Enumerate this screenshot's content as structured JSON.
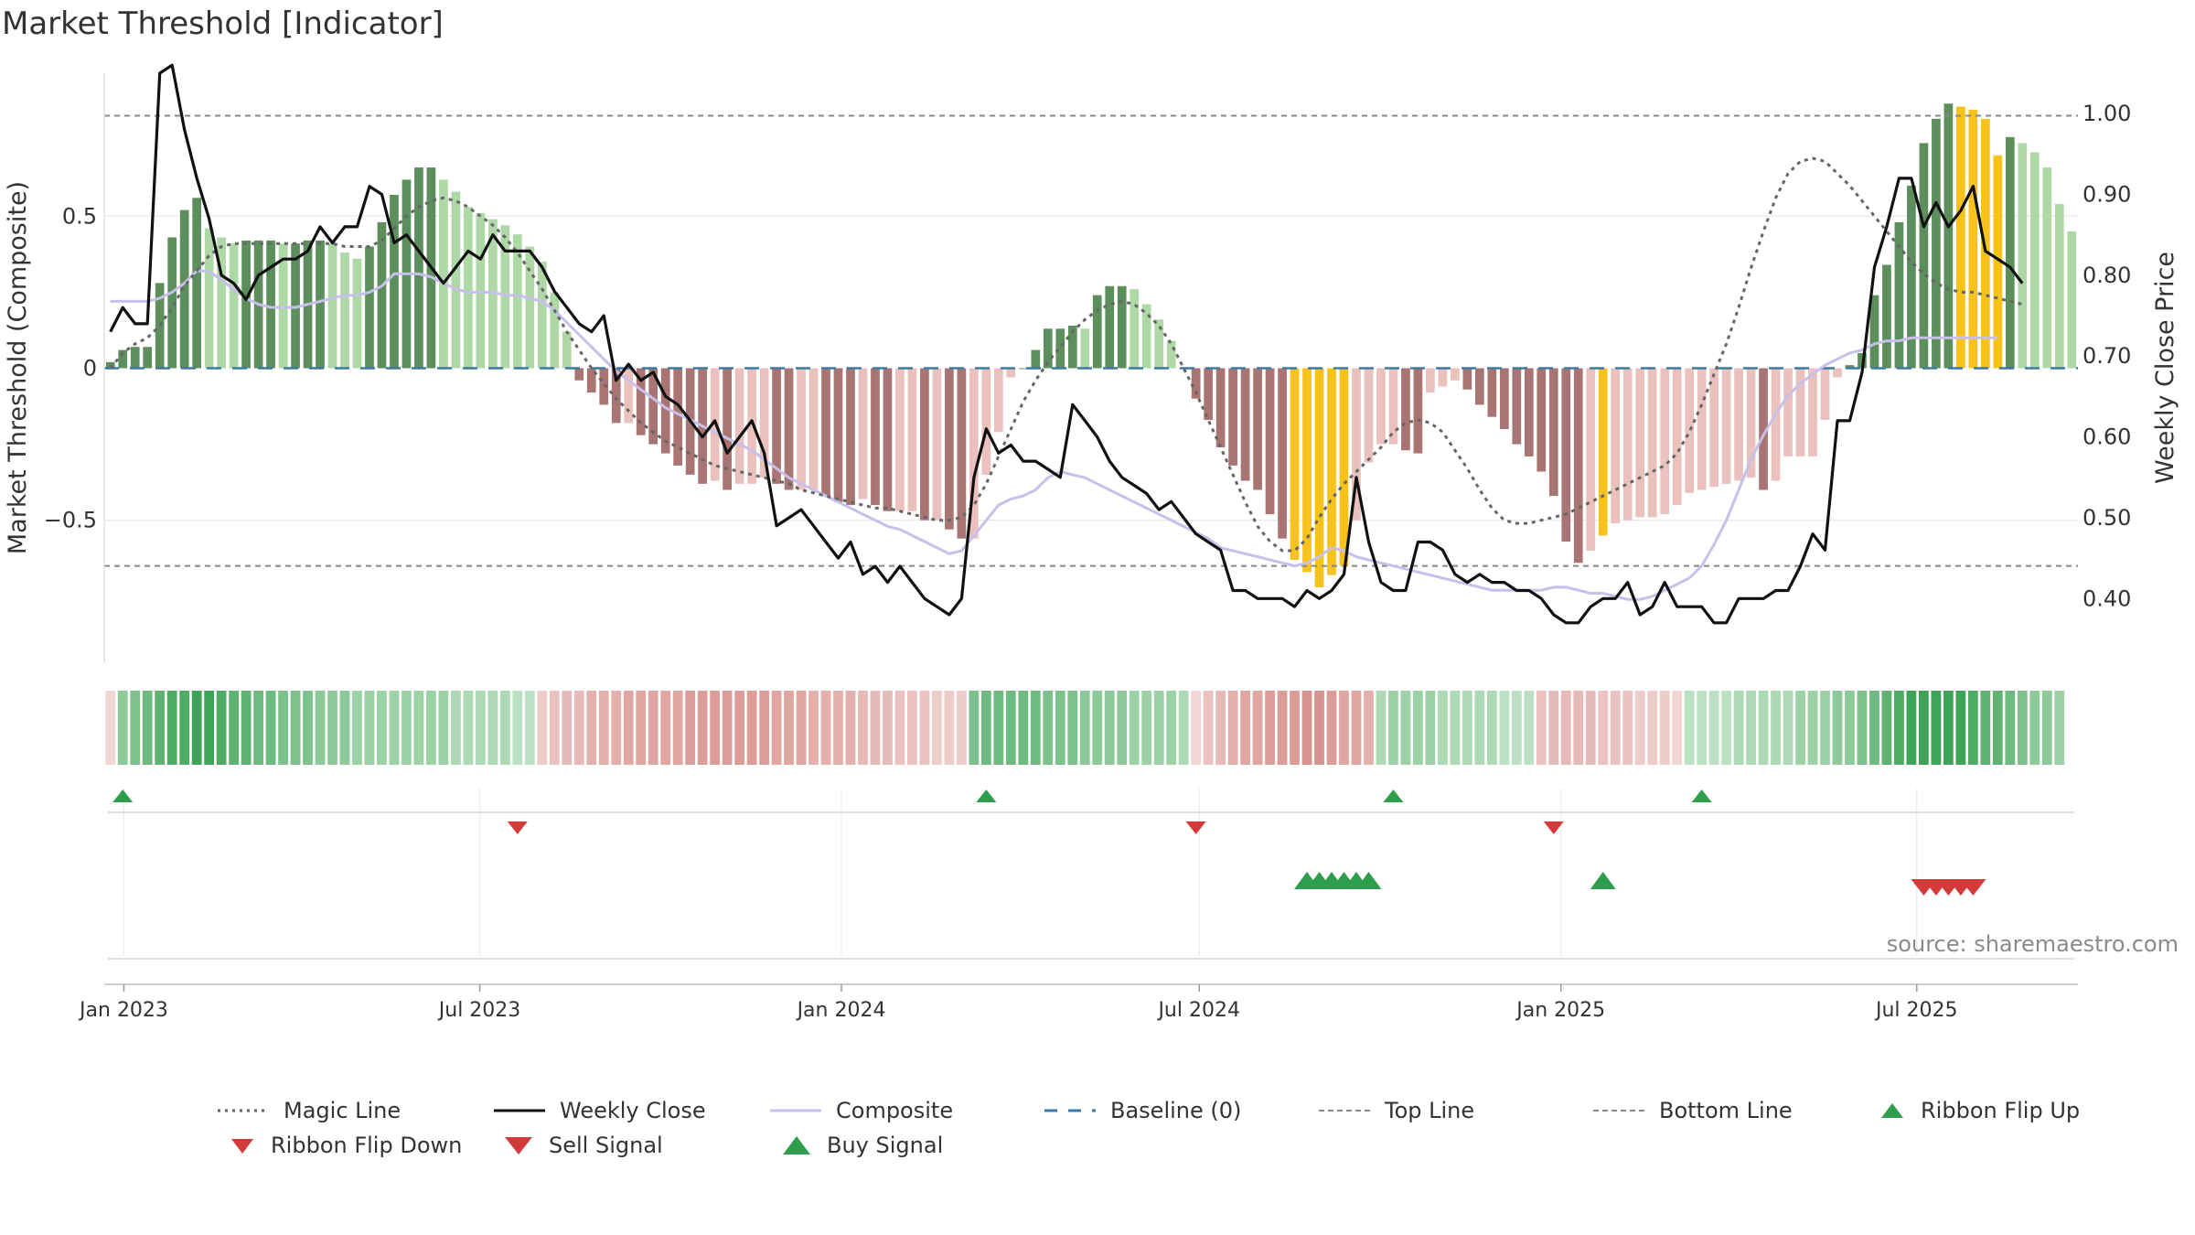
{
  "title": "Market Threshold [Indicator]",
  "source": "source: sharemaestro.com",
  "colors": {
    "strong_green": "#5d8f5d",
    "light_green": "#aed8a6",
    "strong_red": "#a87573",
    "light_red": "#ebc1bd",
    "gold": "#f7c21b",
    "composite": "#c8c0ea",
    "close": "#111111",
    "magic": "#666666",
    "baseline": "#3a7aa8",
    "buy": "#2e9e4c",
    "sell": "#d33a3a"
  },
  "chart_data": {
    "type": "bar+line",
    "ylabel_left": "Market Threshold (Composite)",
    "ylabel_right": "Weekly Close Price",
    "yticks_left": [
      "0.5",
      "0",
      "−0.5"
    ],
    "yticks_right": [
      "1.00",
      "0.90",
      "0.80",
      "0.70",
      "0.60",
      "0.50",
      "0.40"
    ],
    "xticks": [
      "Jan 2023",
      "Jul 2023",
      "Jan 2024",
      "Jul 2024",
      "Jan 2025",
      "Jul 2025"
    ],
    "ylim_left": [
      -0.97,
      0.97
    ],
    "ylim_right": [
      0.32,
      1.05
    ],
    "top_line": 0.83,
    "bottom_line": -0.65,
    "baseline": 0,
    "x_range": [
      "2022-12-22",
      "2025-09-21"
    ],
    "histogram": [
      0.02,
      0.06,
      0.07,
      0.07,
      0.28,
      0.43,
      0.52,
      0.56,
      0.46,
      0.43,
      0.41,
      0.42,
      0.42,
      0.42,
      0.41,
      0.41,
      0.42,
      0.42,
      0.41,
      0.38,
      0.36,
      0.4,
      0.48,
      0.57,
      0.62,
      0.66,
      0.66,
      0.62,
      0.58,
      0.53,
      0.51,
      0.49,
      0.47,
      0.44,
      0.4,
      0.35,
      0.25,
      0.12,
      -0.04,
      -0.08,
      -0.12,
      -0.18,
      -0.18,
      -0.22,
      -0.25,
      -0.28,
      -0.32,
      -0.35,
      -0.38,
      -0.37,
      -0.4,
      -0.38,
      -0.38,
      -0.36,
      -0.38,
      -0.4,
      -0.4,
      -0.4,
      -0.42,
      -0.44,
      -0.45,
      -0.43,
      -0.45,
      -0.47,
      -0.47,
      -0.47,
      -0.5,
      -0.5,
      -0.53,
      -0.56,
      -0.56,
      -0.35,
      -0.21,
      -0.03,
      0.0,
      0.06,
      0.13,
      0.13,
      0.14,
      0.13,
      0.24,
      0.27,
      0.27,
      0.26,
      0.21,
      0.16,
      0.09,
      0.0,
      -0.1,
      -0.17,
      -0.26,
      -0.32,
      -0.37,
      -0.4,
      -0.48,
      -0.56,
      -0.63,
      -0.67,
      -0.72,
      -0.68,
      -0.65,
      -0.5,
      -0.31,
      -0.25,
      -0.25,
      -0.27,
      -0.28,
      -0.08,
      -0.06,
      -0.04,
      -0.07,
      -0.12,
      -0.16,
      -0.2,
      -0.25,
      -0.29,
      -0.34,
      -0.42,
      -0.57,
      -0.64,
      -0.6,
      -0.55,
      -0.51,
      -0.5,
      -0.49,
      -0.49,
      -0.48,
      -0.45,
      -0.41,
      -0.4,
      -0.39,
      -0.38,
      -0.37,
      -0.36,
      -0.4,
      -0.37,
      -0.29,
      -0.29,
      -0.29,
      -0.17,
      -0.03,
      0.01,
      0.05,
      0.24,
      0.34,
      0.48,
      0.6,
      0.74,
      0.82,
      0.87,
      0.86,
      0.85,
      0.82,
      0.7,
      0.76,
      0.74,
      0.71,
      0.66,
      0.54,
      0.45
    ],
    "gold_bars": [
      96,
      97,
      98,
      99,
      100,
      121,
      150,
      151,
      152,
      153
    ],
    "weekly_close": [
      0.73,
      0.76,
      0.74,
      0.74,
      1.05,
      1.06,
      0.98,
      0.92,
      0.87,
      0.8,
      0.79,
      0.77,
      0.8,
      0.81,
      0.82,
      0.82,
      0.83,
      0.86,
      0.84,
      0.86,
      0.86,
      0.91,
      0.9,
      0.84,
      0.85,
      0.83,
      0.81,
      0.79,
      0.81,
      0.83,
      0.82,
      0.85,
      0.83,
      0.83,
      0.83,
      0.81,
      0.78,
      0.76,
      0.74,
      0.73,
      0.75,
      0.67,
      0.69,
      0.67,
      0.68,
      0.65,
      0.64,
      0.62,
      0.6,
      0.62,
      0.58,
      0.6,
      0.62,
      0.58,
      0.49,
      0.5,
      0.51,
      0.49,
      0.47,
      0.45,
      0.47,
      0.43,
      0.44,
      0.42,
      0.44,
      0.42,
      0.4,
      0.39,
      0.38,
      0.4,
      0.55,
      0.61,
      0.58,
      0.59,
      0.57,
      0.57,
      0.56,
      0.55,
      0.64,
      0.62,
      0.6,
      0.57,
      0.55,
      0.54,
      0.53,
      0.51,
      0.52,
      0.5,
      0.48,
      0.47,
      0.46,
      0.41,
      0.41,
      0.4,
      0.4,
      0.4,
      0.39,
      0.41,
      0.4,
      0.41,
      0.43,
      0.55,
      0.47,
      0.42,
      0.41,
      0.41,
      0.47,
      0.47,
      0.46,
      0.43,
      0.42,
      0.43,
      0.42,
      0.42,
      0.41,
      0.41,
      0.4,
      0.38,
      0.37,
      0.37,
      0.39,
      0.4,
      0.4,
      0.42,
      0.38,
      0.39,
      0.42,
      0.39,
      0.39,
      0.39,
      0.37,
      0.37,
      0.4,
      0.4,
      0.4,
      0.41,
      0.41,
      0.44,
      0.48,
      0.46,
      0.62,
      0.62,
      0.68,
      0.81,
      0.86,
      0.92,
      0.92,
      0.86,
      0.89,
      0.86,
      0.88,
      0.91,
      0.83,
      0.82,
      0.81,
      0.79
    ],
    "composite": [
      0.22,
      0.22,
      0.22,
      0.22,
      0.23,
      0.25,
      0.28,
      0.32,
      0.32,
      0.29,
      0.26,
      0.23,
      0.21,
      0.2,
      0.2,
      0.2,
      0.21,
      0.22,
      0.23,
      0.24,
      0.24,
      0.25,
      0.27,
      0.31,
      0.31,
      0.31,
      0.3,
      0.28,
      0.26,
      0.25,
      0.25,
      0.25,
      0.24,
      0.24,
      0.23,
      0.22,
      0.19,
      0.15,
      0.11,
      0.07,
      0.03,
      -0.01,
      -0.04,
      -0.07,
      -0.1,
      -0.13,
      -0.15,
      -0.17,
      -0.19,
      -0.21,
      -0.23,
      -0.25,
      -0.27,
      -0.3,
      -0.33,
      -0.36,
      -0.38,
      -0.4,
      -0.42,
      -0.44,
      -0.46,
      -0.48,
      -0.5,
      -0.52,
      -0.53,
      -0.55,
      -0.57,
      -0.59,
      -0.61,
      -0.6,
      -0.55,
      -0.5,
      -0.45,
      -0.43,
      -0.42,
      -0.4,
      -0.36,
      -0.34,
      -0.35,
      -0.36,
      -0.38,
      -0.4,
      -0.42,
      -0.44,
      -0.46,
      -0.48,
      -0.5,
      -0.52,
      -0.54,
      -0.56,
      -0.59,
      -0.6,
      -0.61,
      -0.62,
      -0.63,
      -0.64,
      -0.65,
      -0.64,
      -0.62,
      -0.59,
      -0.6,
      -0.62,
      -0.63,
      -0.64,
      -0.65,
      -0.66,
      -0.67,
      -0.68,
      -0.69,
      -0.7,
      -0.71,
      -0.72,
      -0.73,
      -0.73,
      -0.73,
      -0.73,
      -0.73,
      -0.72,
      -0.72,
      -0.73,
      -0.74,
      -0.74,
      -0.75,
      -0.76,
      -0.76,
      -0.75,
      -0.73,
      -0.71,
      -0.69,
      -0.65,
      -0.58,
      -0.5,
      -0.4,
      -0.3,
      -0.22,
      -0.15,
      -0.09,
      -0.05,
      -0.02,
      0.01,
      0.03,
      0.05,
      0.06,
      0.08,
      0.09,
      0.09,
      0.1,
      0.1,
      0.1,
      0.1,
      0.1,
      0.1,
      0.1,
      0.1
    ],
    "magic_line": [
      0.0,
      0.05,
      0.08,
      0.1,
      0.14,
      0.2,
      0.27,
      0.32,
      0.37,
      0.4,
      0.41,
      0.41,
      0.41,
      0.41,
      0.41,
      0.41,
      0.41,
      0.41,
      0.41,
      0.4,
      0.4,
      0.4,
      0.42,
      0.46,
      0.5,
      0.53,
      0.55,
      0.56,
      0.55,
      0.53,
      0.5,
      0.47,
      0.43,
      0.38,
      0.32,
      0.26,
      0.19,
      0.12,
      0.06,
      0.0,
      -0.05,
      -0.1,
      -0.14,
      -0.18,
      -0.21,
      -0.24,
      -0.26,
      -0.28,
      -0.3,
      -0.32,
      -0.33,
      -0.34,
      -0.35,
      -0.36,
      -0.37,
      -0.38,
      -0.4,
      -0.41,
      -0.42,
      -0.43,
      -0.44,
      -0.45,
      -0.46,
      -0.46,
      -0.47,
      -0.48,
      -0.49,
      -0.5,
      -0.5,
      -0.49,
      -0.45,
      -0.38,
      -0.29,
      -0.2,
      -0.11,
      -0.04,
      0.02,
      0.07,
      0.12,
      0.16,
      0.19,
      0.21,
      0.22,
      0.21,
      0.18,
      0.14,
      0.08,
      0.0,
      -0.08,
      -0.17,
      -0.26,
      -0.35,
      -0.44,
      -0.52,
      -0.57,
      -0.6,
      -0.6,
      -0.56,
      -0.49,
      -0.43,
      -0.38,
      -0.34,
      -0.3,
      -0.26,
      -0.21,
      -0.18,
      -0.17,
      -0.18,
      -0.21,
      -0.27,
      -0.33,
      -0.4,
      -0.46,
      -0.5,
      -0.51,
      -0.51,
      -0.5,
      -0.49,
      -0.48,
      -0.46,
      -0.44,
      -0.42,
      -0.4,
      -0.38,
      -0.36,
      -0.34,
      -0.32,
      -0.28,
      -0.21,
      -0.12,
      -0.02,
      0.08,
      0.2,
      0.33,
      0.45,
      0.56,
      0.64,
      0.68,
      0.69,
      0.68,
      0.64,
      0.6,
      0.55,
      0.5,
      0.45,
      0.4,
      0.35,
      0.31,
      0.28,
      0.26,
      0.25,
      0.25,
      0.24,
      0.23,
      0.22,
      0.21
    ],
    "ribbon": [
      -0.1,
      0.5,
      0.6,
      0.7,
      0.8,
      0.9,
      0.9,
      1.0,
      1.0,
      0.9,
      0.8,
      0.8,
      0.7,
      0.7,
      0.6,
      0.6,
      0.6,
      0.5,
      0.5,
      0.5,
      0.4,
      0.4,
      0.4,
      0.4,
      0.4,
      0.4,
      0.4,
      0.4,
      0.3,
      0.3,
      0.3,
      0.3,
      0.3,
      0.2,
      0.2,
      -0.2,
      -0.3,
      -0.4,
      -0.4,
      -0.5,
      -0.5,
      -0.5,
      -0.6,
      -0.6,
      -0.6,
      -0.6,
      -0.6,
      -0.7,
      -0.7,
      -0.7,
      -0.7,
      -0.7,
      -0.7,
      -0.7,
      -0.6,
      -0.6,
      -0.6,
      -0.5,
      -0.5,
      -0.5,
      -0.5,
      -0.4,
      -0.4,
      -0.4,
      -0.3,
      -0.3,
      -0.3,
      -0.2,
      -0.2,
      -0.2,
      0.6,
      0.7,
      0.7,
      0.7,
      0.7,
      0.7,
      0.6,
      0.6,
      0.6,
      0.5,
      0.5,
      0.5,
      0.5,
      0.4,
      0.4,
      0.4,
      0.4,
      0.3,
      -0.1,
      -0.3,
      -0.4,
      -0.5,
      -0.6,
      -0.6,
      -0.7,
      -0.7,
      -0.7,
      -0.8,
      -0.8,
      -0.7,
      -0.6,
      -0.6,
      -0.5,
      0.3,
      0.4,
      0.4,
      0.4,
      0.4,
      0.3,
      0.3,
      0.3,
      0.3,
      0.3,
      0.2,
      0.2,
      0.2,
      -0.3,
      -0.4,
      -0.4,
      -0.4,
      -0.4,
      -0.3,
      -0.3,
      -0.3,
      -0.2,
      -0.2,
      -0.2,
      -0.1,
      0.2,
      0.2,
      0.2,
      0.2,
      0.3,
      0.3,
      0.3,
      0.3,
      0.3,
      0.4,
      0.4,
      0.4,
      0.5,
      0.5,
      0.6,
      0.7,
      0.8,
      0.9,
      1.0,
      1.0,
      1.0,
      1.0,
      1.0,
      0.9,
      0.8,
      0.8,
      0.7,
      0.6,
      0.5,
      0.5,
      0.4
    ],
    "ribbon_flip_up": [
      1,
      71,
      104,
      129
    ],
    "ribbon_flip_down": [
      33,
      88,
      117
    ],
    "buy_signals": [
      97,
      98,
      99,
      100,
      101,
      102,
      121
    ],
    "sell_signals": [
      147,
      148,
      149,
      150,
      151
    ]
  },
  "legend": [
    {
      "label": "Magic Line",
      "marker": "dotted-line"
    },
    {
      "label": "Weekly Close",
      "marker": "solid-line"
    },
    {
      "label": "Composite",
      "marker": "lavender-line"
    },
    {
      "label": "Baseline (0)",
      "marker": "dashed-blue-line"
    },
    {
      "label": "Top Line",
      "marker": "dashed-gray-line"
    },
    {
      "label": "Bottom Line",
      "marker": "dashed-gray-line"
    },
    {
      "label": "Ribbon Flip Up",
      "marker": "green-up-triangle"
    },
    {
      "label": "Ribbon Flip Down",
      "marker": "red-down-triangle"
    },
    {
      "label": "Sell Signal",
      "marker": "red-down-triangle-large"
    },
    {
      "label": "Buy Signal",
      "marker": "green-up-triangle-large"
    }
  ]
}
